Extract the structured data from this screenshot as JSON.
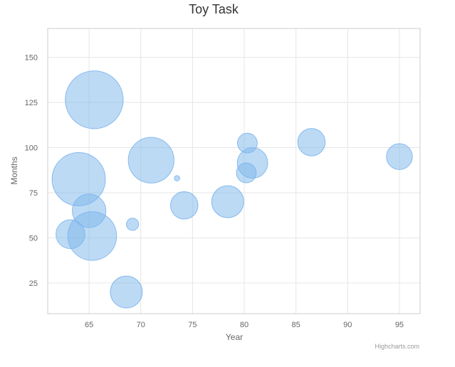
{
  "chart_data": {
    "type": "scatter",
    "subtype": "bubble",
    "title": "Toy Task",
    "xlabel": "Year",
    "ylabel": "Months",
    "xlim": [
      61,
      97
    ],
    "ylim": [
      8,
      166
    ],
    "xticks": [
      65,
      70,
      75,
      80,
      85,
      90,
      95
    ],
    "yticks": [
      25,
      50,
      75,
      100,
      125,
      150
    ],
    "grid": true,
    "legend": "none",
    "color": "#7cb5ec",
    "series": [
      {
        "points": [
          {
            "x": 65.5,
            "y": 126.5,
            "z": 38
          },
          {
            "x": 64.0,
            "y": 82.5,
            "z": 35
          },
          {
            "x": 71.0,
            "y": 93.0,
            "z": 30
          },
          {
            "x": 65.3,
            "y": 51.0,
            "z": 32
          },
          {
            "x": 65.0,
            "y": 65.0,
            "z": 22
          },
          {
            "x": 63.2,
            "y": 52.0,
            "z": 19
          },
          {
            "x": 68.6,
            "y": 20.0,
            "z": 21
          },
          {
            "x": 78.4,
            "y": 70.0,
            "z": 21
          },
          {
            "x": 80.8,
            "y": 91.5,
            "z": 20
          },
          {
            "x": 86.5,
            "y": 103.0,
            "z": 18
          },
          {
            "x": 95.0,
            "y": 95.0,
            "z": 17
          },
          {
            "x": 74.2,
            "y": 68.0,
            "z": 18
          },
          {
            "x": 80.3,
            "y": 102.5,
            "z": 13
          },
          {
            "x": 80.2,
            "y": 86.0,
            "z": 13
          },
          {
            "x": 69.2,
            "y": 57.5,
            "z": 8
          },
          {
            "x": 73.5,
            "y": 83.0,
            "z": 3.5
          }
        ]
      }
    ]
  },
  "credit": "Highcharts.com"
}
